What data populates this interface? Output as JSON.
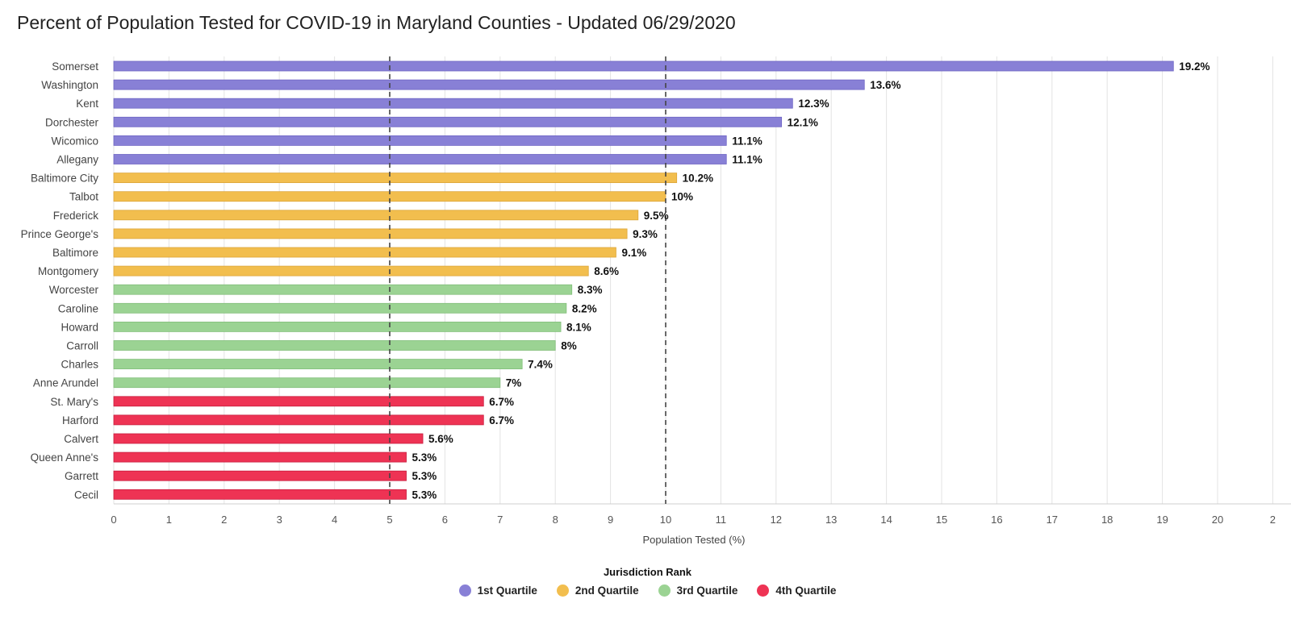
{
  "chart_data": {
    "type": "bar",
    "orientation": "horizontal",
    "title": "Percent of Population Tested for COVID-19 in Maryland Counties - Updated 06/29/2020",
    "xlabel": "Population Tested (%)",
    "ylabel": "",
    "xlim": [
      0,
      21
    ],
    "x_ticks": [
      "0",
      "1",
      "2",
      "3",
      "4",
      "5",
      "6",
      "7",
      "8",
      "9",
      "10",
      "11",
      "12",
      "13",
      "14",
      "15",
      "16",
      "17",
      "18",
      "19",
      "20",
      "2"
    ],
    "grid": true,
    "reference_lines": [
      5,
      10
    ],
    "categories": [
      "Somerset",
      "Washington",
      "Kent",
      "Dorchester",
      "Wicomico",
      "Allegany",
      "Baltimore City",
      "Talbot",
      "Frederick",
      "Prince George's",
      "Baltimore",
      "Montgomery",
      "Worcester",
      "Caroline",
      "Howard",
      "Carroll",
      "Charles",
      "Anne Arundel",
      "St. Mary's",
      "Harford",
      "Calvert",
      "Queen Anne's",
      "Garrett",
      "Cecil"
    ],
    "values": [
      19.2,
      13.6,
      12.3,
      12.1,
      11.1,
      11.1,
      10.2,
      10,
      9.5,
      9.3,
      9.1,
      8.6,
      8.3,
      8.2,
      8.1,
      8,
      7.4,
      7,
      6.7,
      6.7,
      5.6,
      5.3,
      5.3,
      5.3
    ],
    "value_labels": [
      "19.2%",
      "13.6%",
      "12.3%",
      "12.1%",
      "11.1%",
      "11.1%",
      "10.2%",
      "10%",
      "9.5%",
      "9.3%",
      "9.1%",
      "8.6%",
      "8.3%",
      "8.2%",
      "8.1%",
      "8%",
      "7.4%",
      "7%",
      "6.7%",
      "6.7%",
      "5.6%",
      "5.3%",
      "5.3%",
      "5.3%"
    ],
    "groups": [
      1,
      1,
      1,
      1,
      1,
      1,
      2,
      2,
      2,
      2,
      2,
      2,
      3,
      3,
      3,
      3,
      3,
      3,
      4,
      4,
      4,
      4,
      4,
      4
    ],
    "legend_title": "Jurisdiction Rank",
    "legend": [
      {
        "name": "1st Quartile",
        "color": "#8880d6"
      },
      {
        "name": "2nd Quartile",
        "color": "#f2be4e"
      },
      {
        "name": "3rd Quartile",
        "color": "#9bd393"
      },
      {
        "name": "4th Quartile",
        "color": "#ee3354"
      }
    ],
    "legend_position": "bottom-center"
  }
}
